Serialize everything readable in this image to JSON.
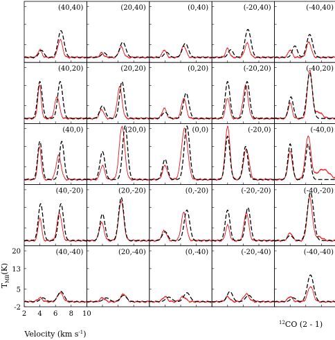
{
  "chart_data": {
    "type": "line",
    "grid_layout": {
      "rows": 5,
      "cols": 5,
      "shared_axes": true
    },
    "xlabel": "Velocity (km s",
    "xlabel_sup": "-1",
    "xlabel_close": ")",
    "ylabel": "T",
    "ylabel_sub": "MB",
    "ylabel_unit": "(K)",
    "xlim": [
      2,
      10
    ],
    "ylim": [
      -2,
      22
    ],
    "x_ticks": [
      "2",
      "4",
      "6",
      "8",
      "10"
    ],
    "y_ticks": [
      "20",
      "13",
      "5",
      "-2"
    ],
    "x_tick_values": [
      2,
      4,
      6,
      8,
      10
    ],
    "y_tick_values": [
      20,
      13,
      5,
      -2
    ],
    "line_label_sup": "12",
    "line_label": "CO (2 - 1)",
    "series_styles": {
      "observed": {
        "color": "#e8141b",
        "dash": "solid"
      },
      "model": {
        "color": "#000000",
        "dash": "dashed"
      }
    },
    "panels": [
      {
        "label": "(40,40)",
        "obs": [
          [
            4.0,
            3.0,
            0.25
          ],
          [
            6.6,
            7.0,
            0.3
          ]
        ],
        "model": [
          [
            4.2,
            2.8,
            0.32
          ],
          [
            6.7,
            10.5,
            0.38
          ]
        ]
      },
      {
        "label": "(20,40)",
        "obs": [
          [
            3.9,
            1.8,
            0.25
          ],
          [
            6.4,
            4.0,
            0.3
          ]
        ],
        "model": [
          [
            4.2,
            1.8,
            0.32
          ],
          [
            6.6,
            6.0,
            0.38
          ]
        ]
      },
      {
        "label": "(0,40)",
        "obs": [
          [
            3.9,
            3.0,
            0.25
          ],
          [
            6.4,
            4.5,
            0.3
          ]
        ],
        "model": [
          [
            4.2,
            2.0,
            0.32
          ],
          [
            6.6,
            5.5,
            0.38
          ]
        ]
      },
      {
        "label": "(-20,40)",
        "obs": [
          [
            4.0,
            3.5,
            0.25
          ],
          [
            6.5,
            5.5,
            0.3
          ]
        ],
        "model": [
          [
            4.4,
            3.0,
            0.32
          ],
          [
            6.6,
            11.0,
            0.38
          ]
        ]
      },
      {
        "label": "(-40,40)",
        "obs": [
          [
            4.0,
            3.0,
            0.25
          ],
          [
            6.4,
            6.0,
            0.3
          ]
        ],
        "model": [
          [
            4.6,
            4.5,
            0.32
          ],
          [
            6.5,
            9.0,
            0.38
          ]
        ]
      },
      {
        "label": "(40,20)",
        "obs": [
          [
            3.95,
            13.0,
            0.22
          ],
          [
            6.2,
            8.5,
            0.3
          ]
        ],
        "model": [
          [
            4.0,
            14.5,
            0.3
          ],
          [
            6.6,
            14.5,
            0.32
          ]
        ]
      },
      {
        "label": "(20,20)",
        "obs": [
          [
            3.9,
            3.5,
            0.28
          ],
          [
            6.2,
            12.5,
            0.3
          ]
        ],
        "model": [
          [
            4.0,
            5.0,
            0.35
          ],
          [
            6.5,
            14.5,
            0.32
          ]
        ]
      },
      {
        "label": "(0,20)",
        "obs": [
          [
            3.9,
            4.0,
            0.28
          ],
          [
            6.4,
            8.0,
            0.3
          ]
        ],
        "model": [
          [
            4.0,
            2.5,
            0.35
          ],
          [
            6.7,
            10.0,
            0.35
          ]
        ]
      },
      {
        "label": "(-20,20)",
        "obs": [
          [
            4.0,
            8.0,
            0.25
          ],
          [
            6.3,
            13.0,
            0.32
          ]
        ],
        "model": [
          [
            4.0,
            14.5,
            0.3
          ],
          [
            6.5,
            14.5,
            0.32
          ]
        ]
      },
      {
        "label": "(-40,20)",
        "obs": [
          [
            4.0,
            6.0,
            0.25
          ],
          [
            6.5,
            19.0,
            0.3
          ],
          [
            7.6,
            2.5,
            0.5
          ]
        ],
        "model": [
          [
            4.1,
            8.5,
            0.3
          ],
          [
            6.5,
            18.0,
            0.35
          ]
        ]
      },
      {
        "label": "(40,0)",
        "obs": [
          [
            3.95,
            13.0,
            0.22
          ],
          [
            6.4,
            9.5,
            0.32
          ]
        ],
        "model": [
          [
            4.0,
            15.0,
            0.28
          ],
          [
            6.8,
            15.0,
            0.3
          ]
        ]
      },
      {
        "label": "(20,0)",
        "obs": [
          [
            4.0,
            5.5,
            0.28
          ],
          [
            6.5,
            21.0,
            0.35
          ]
        ],
        "model": [
          [
            4.0,
            11.0,
            0.32
          ],
          [
            6.9,
            21.0,
            0.32
          ]
        ]
      },
      {
        "label": "(0,0)",
        "obs": [
          [
            4.0,
            5.5,
            0.3
          ],
          [
            6.5,
            20.0,
            0.4
          ]
        ],
        "model": [
          [
            4.0,
            8.0,
            0.32
          ],
          [
            6.8,
            21.0,
            0.35
          ]
        ]
      },
      {
        "label": "(-20,0)",
        "obs": [
          [
            4.0,
            21.0,
            0.3
          ],
          [
            6.4,
            12.0,
            0.35
          ]
        ],
        "model": [
          [
            4.0,
            17.0,
            0.3
          ],
          [
            6.3,
            13.0,
            0.3
          ]
        ]
      },
      {
        "label": "(-40,0)",
        "obs": [
          [
            4.0,
            11.0,
            0.28
          ],
          [
            6.3,
            17.0,
            0.35
          ],
          [
            8.2,
            4.0,
            0.8
          ]
        ],
        "model": [
          [
            4.0,
            14.0,
            0.28
          ],
          [
            6.3,
            14.0,
            0.3
          ]
        ]
      },
      {
        "label": "(40,-20)",
        "obs": [
          [
            4.0,
            9.0,
            0.22
          ],
          [
            6.5,
            11.0,
            0.3
          ]
        ],
        "model": [
          [
            4.1,
            14.5,
            0.3
          ],
          [
            6.7,
            14.5,
            0.32
          ]
        ]
      },
      {
        "label": "(20,-20)",
        "obs": [
          [
            3.9,
            7.0,
            0.3
          ],
          [
            6.4,
            15.5,
            0.32
          ]
        ],
        "model": [
          [
            4.0,
            10.5,
            0.32
          ],
          [
            6.4,
            17.0,
            0.33
          ]
        ]
      },
      {
        "label": "(0,-20)",
        "obs": [
          [
            3.9,
            4.0,
            0.3
          ],
          [
            6.4,
            11.0,
            0.32
          ]
        ],
        "model": [
          [
            4.0,
            3.5,
            0.35
          ],
          [
            6.8,
            12.0,
            0.35
          ]
        ]
      },
      {
        "label": "(-20,-20)",
        "obs": [
          [
            4.0,
            6.0,
            0.25
          ],
          [
            6.4,
            11.0,
            0.3
          ]
        ],
        "model": [
          [
            4.0,
            12.0,
            0.3
          ],
          [
            6.6,
            13.0,
            0.32
          ]
        ]
      },
      {
        "label": "(-40,-20)",
        "obs": [
          [
            4.0,
            3.0,
            0.3
          ],
          [
            6.5,
            17.0,
            0.32
          ],
          [
            7.6,
            1.5,
            0.5
          ]
        ],
        "model": [
          [
            4.0,
            2.0,
            0.35
          ],
          [
            6.6,
            19.0,
            0.4
          ]
        ]
      },
      {
        "label": "(40,-40)",
        "obs": [
          [
            4.0,
            1.5,
            0.3
          ],
          [
            6.6,
            3.5,
            0.35
          ]
        ],
        "model": [
          [
            4.4,
            1.5,
            0.35
          ],
          [
            6.7,
            4.0,
            0.4
          ]
        ]
      },
      {
        "label": "(20,-40)",
        "obs": [
          [
            4.0,
            1.5,
            0.3
          ],
          [
            6.7,
            3.0,
            0.35
          ]
        ],
        "model": [
          [
            4.5,
            1.5,
            0.4
          ],
          [
            6.7,
            2.5,
            0.4
          ]
        ]
      },
      {
        "label": "(0,-40)",
        "obs": [
          [
            4.0,
            2.0,
            0.3
          ],
          [
            6.3,
            2.0,
            0.35
          ]
        ],
        "model": [
          [
            4.5,
            1.8,
            0.4
          ],
          [
            6.8,
            3.5,
            0.4
          ]
        ]
      },
      {
        "label": "(-20,-40)",
        "obs": [
          [
            4.0,
            2.0,
            0.3
          ],
          [
            6.4,
            3.0,
            0.35
          ]
        ],
        "model": [
          [
            4.3,
            4.0,
            0.35
          ],
          [
            6.7,
            2.5,
            0.4
          ]
        ]
      },
      {
        "label": "(-40,-40)",
        "obs": [
          [
            4.0,
            2.0,
            0.3
          ],
          [
            6.6,
            6.0,
            0.35
          ]
        ],
        "model": [
          [
            4.4,
            1.5,
            0.35
          ],
          [
            6.6,
            10.5,
            0.4
          ]
        ]
      }
    ]
  }
}
